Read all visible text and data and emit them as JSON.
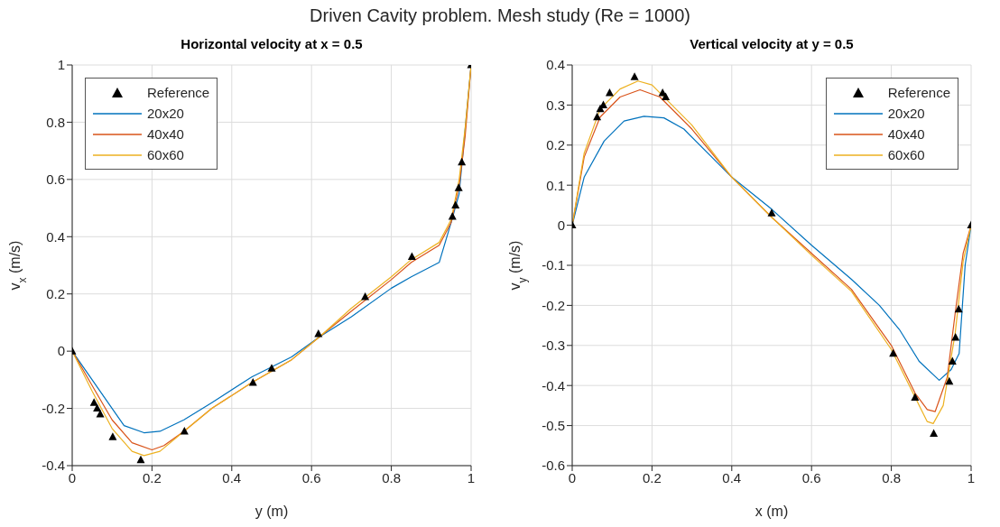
{
  "chart_data": [
    {
      "type": "line",
      "title": "Horizontal velocity at x = 0.5",
      "xlabel": "y (m)",
      "ylabel": "v$_{x}$ (m/s)",
      "annotations": [
        "Driven Cavity problem. Mesh study (Re = 1000)"
      ],
      "xlim": [
        0,
        1
      ],
      "xticks": [
        0,
        0.2,
        0.4,
        0.6,
        0.8,
        1
      ],
      "ylim": [
        -0.4,
        1
      ],
      "yticks": [
        -0.4,
        -0.2,
        0,
        0.2,
        0.4,
        0.6,
        0.8,
        1
      ],
      "grid": true,
      "legend": "top left",
      "series": [
        {
          "name": "Reference",
          "type": "scatter",
          "marker": "triangle",
          "color": "#000000",
          "x": [
            0,
            0.0547,
            0.0625,
            0.0703,
            0.1016,
            0.1719,
            0.2813,
            0.4531,
            0.5,
            0.6172,
            0.7344,
            0.8516,
            0.9531,
            0.9609,
            0.9688,
            0.9766,
            1
          ],
          "values": [
            0,
            -0.18,
            -0.2,
            -0.22,
            -0.3,
            -0.38,
            -0.28,
            -0.11,
            -0.06,
            0.06,
            0.19,
            0.33,
            0.47,
            0.51,
            0.57,
            0.66,
            1
          ]
        },
        {
          "name": "20x20",
          "type": "line",
          "color": "#0072bd",
          "x": [
            0,
            0.05,
            0.1,
            0.13,
            0.18,
            0.22,
            0.28,
            0.35,
            0.45,
            0.55,
            0.62,
            0.7,
            0.8,
            0.85,
            0.92,
            0.95,
            0.97,
            0.98,
            1
          ],
          "values": [
            0,
            -0.1,
            -0.2,
            -0.26,
            -0.285,
            -0.28,
            -0.24,
            -0.18,
            -0.09,
            -0.02,
            0.05,
            0.12,
            0.22,
            0.26,
            0.31,
            0.45,
            0.55,
            0.7,
            1
          ]
        },
        {
          "name": "40x40",
          "type": "line",
          "color": "#d95319",
          "x": [
            0,
            0.05,
            0.1,
            0.15,
            0.2,
            0.23,
            0.28,
            0.35,
            0.45,
            0.55,
            0.62,
            0.7,
            0.8,
            0.85,
            0.92,
            0.95,
            0.97,
            0.985,
            1
          ],
          "values": [
            0,
            -0.12,
            -0.24,
            -0.32,
            -0.345,
            -0.33,
            -0.28,
            -0.2,
            -0.11,
            -0.03,
            0.05,
            0.14,
            0.25,
            0.31,
            0.37,
            0.45,
            0.58,
            0.75,
            1
          ]
        },
        {
          "name": "60x60",
          "type": "line",
          "color": "#edb120",
          "x": [
            0,
            0.05,
            0.1,
            0.15,
            0.18,
            0.22,
            0.28,
            0.35,
            0.45,
            0.55,
            0.62,
            0.7,
            0.8,
            0.85,
            0.92,
            0.95,
            0.97,
            0.985,
            1
          ],
          "values": [
            0,
            -0.14,
            -0.27,
            -0.35,
            -0.365,
            -0.35,
            -0.28,
            -0.2,
            -0.11,
            -0.03,
            0.05,
            0.15,
            0.26,
            0.32,
            0.38,
            0.46,
            0.6,
            0.78,
            1
          ]
        }
      ]
    },
    {
      "type": "line",
      "title": "Vertical velocity at y = 0.5",
      "xlabel": "x (m)",
      "ylabel": "v$_{y}$ (m/s)",
      "xlim": [
        0,
        1
      ],
      "xticks": [
        0,
        0.2,
        0.4,
        0.6,
        0.8,
        1
      ],
      "ylim": [
        -0.6,
        0.4
      ],
      "yticks": [
        -0.6,
        -0.5,
        -0.4,
        -0.3,
        -0.2,
        -0.1,
        0,
        0.1,
        0.2,
        0.3,
        0.4
      ],
      "grid": true,
      "legend": "top right",
      "series": [
        {
          "name": "Reference",
          "type": "scatter",
          "marker": "triangle",
          "color": "#000000",
          "x": [
            0,
            0.0625,
            0.0703,
            0.0781,
            0.0938,
            0.1563,
            0.2266,
            0.2344,
            0.5,
            0.8047,
            0.8594,
            0.9063,
            0.9453,
            0.9531,
            0.9609,
            0.9688,
            1
          ],
          "values": [
            0,
            0.27,
            0.29,
            0.3,
            0.33,
            0.37,
            0.33,
            0.32,
            0.03,
            -0.32,
            -0.43,
            -0.52,
            -0.39,
            -0.34,
            -0.28,
            -0.21,
            0
          ]
        },
        {
          "name": "20x20",
          "type": "line",
          "color": "#0072bd",
          "x": [
            0,
            0.03,
            0.08,
            0.13,
            0.18,
            0.23,
            0.28,
            0.35,
            0.4,
            0.5,
            0.6,
            0.7,
            0.77,
            0.82,
            0.87,
            0.92,
            0.95,
            0.97,
            0.985,
            1
          ],
          "values": [
            0,
            0.12,
            0.21,
            0.26,
            0.272,
            0.268,
            0.24,
            0.17,
            0.12,
            0.04,
            -0.05,
            -0.135,
            -0.2,
            -0.26,
            -0.34,
            -0.387,
            -0.36,
            -0.32,
            -0.1,
            0
          ]
        },
        {
          "name": "40x40",
          "type": "line",
          "color": "#d95319",
          "x": [
            0,
            0.03,
            0.07,
            0.12,
            0.17,
            0.22,
            0.3,
            0.4,
            0.5,
            0.6,
            0.7,
            0.8,
            0.86,
            0.89,
            0.91,
            0.94,
            0.96,
            0.98,
            1
          ],
          "values": [
            0,
            0.17,
            0.27,
            0.32,
            0.338,
            0.32,
            0.24,
            0.12,
            0.02,
            -0.07,
            -0.16,
            -0.3,
            -0.42,
            -0.46,
            -0.465,
            -0.38,
            -0.22,
            -0.07,
            0
          ]
        },
        {
          "name": "60x60",
          "type": "line",
          "color": "#edb120",
          "x": [
            0,
            0.03,
            0.07,
            0.12,
            0.165,
            0.2,
            0.3,
            0.4,
            0.5,
            0.6,
            0.7,
            0.8,
            0.86,
            0.89,
            0.905,
            0.93,
            0.96,
            0.98,
            1
          ],
          "values": [
            0,
            0.18,
            0.29,
            0.34,
            0.36,
            0.35,
            0.25,
            0.12,
            0.02,
            -0.075,
            -0.165,
            -0.31,
            -0.43,
            -0.49,
            -0.495,
            -0.45,
            -0.27,
            -0.09,
            0
          ]
        }
      ]
    }
  ]
}
